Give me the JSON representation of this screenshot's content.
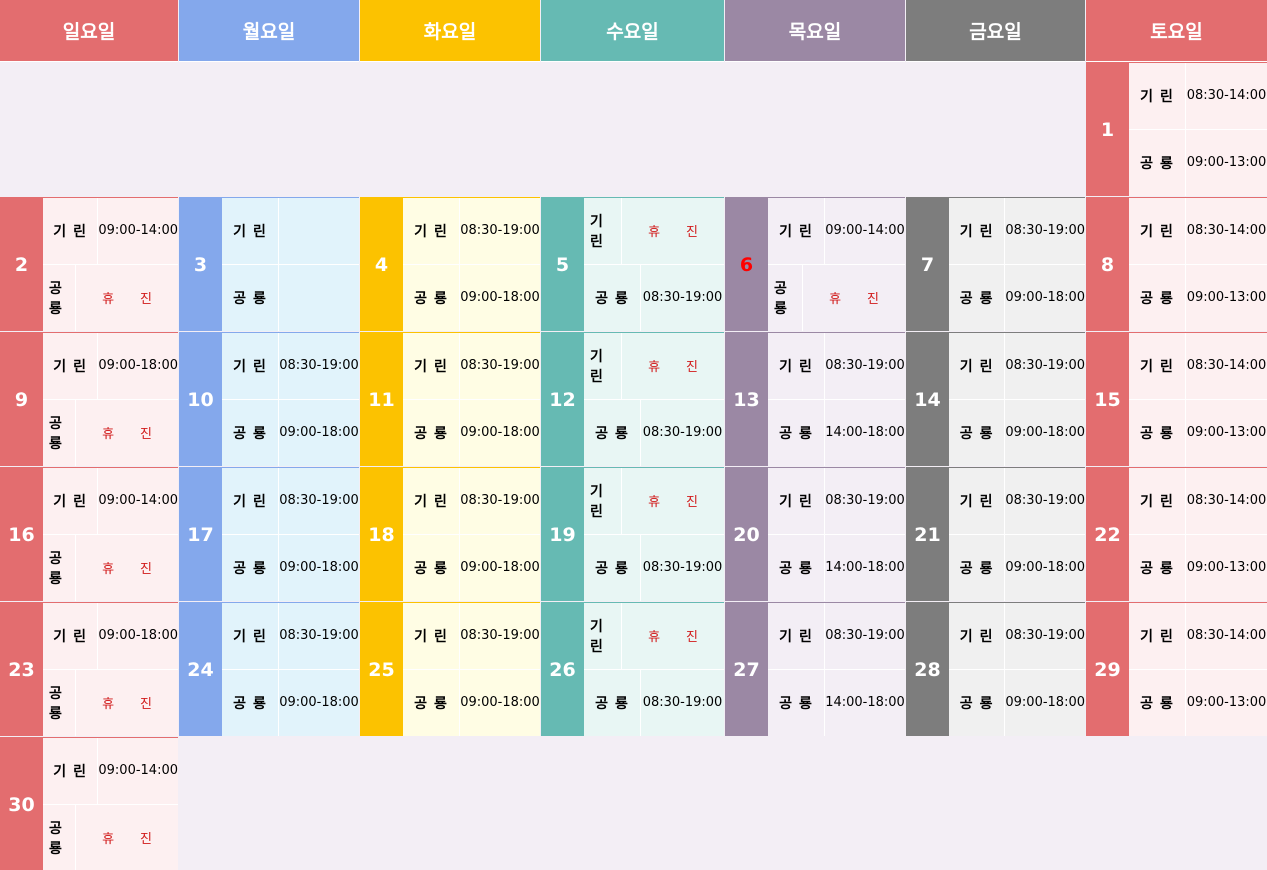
{
  "colors": {
    "background": "#f3eef5",
    "sun": {
      "header": "#e36d6f",
      "num": "#e36d6f",
      "body": "#fdf0f1"
    },
    "mon": {
      "header": "#84a8ec",
      "num": "#84a8ec",
      "body": "#e1f3fb"
    },
    "tue": {
      "header": "#fcc200",
      "num": "#fcc200",
      "body": "#fffde4"
    },
    "wed": {
      "header": "#66bab3",
      "num": "#66bab3",
      "body": "#e8f6f4"
    },
    "thu": {
      "header": "#9b88a4",
      "num": "#9b88a4",
      "body": "#f3eef5"
    },
    "fri": {
      "header": "#7d7d7d",
      "num": "#7d7d7d",
      "body": "#f0f0f0"
    },
    "sat": {
      "header": "#e36d6f",
      "num": "#e36d6f",
      "body": "#fdf0f1"
    },
    "holiday_text": "#ff0000",
    "closed_text": "#d11a1a"
  },
  "headers": [
    "일요일",
    "월요일",
    "화요일",
    "수요일",
    "목요일",
    "금요일",
    "토요일"
  ],
  "doctors": [
    "기린",
    "공룡"
  ],
  "closed_label": "휴진",
  "days": [
    {
      "day": "1",
      "col": 6,
      "week": 0,
      "times": [
        "08:30-14:00",
        "09:00-13:00"
      ]
    },
    {
      "day": "2",
      "col": 0,
      "week": 1,
      "times": [
        "09:00-14:00",
        "휴진"
      ]
    },
    {
      "day": "3",
      "col": 1,
      "week": 1,
      "times": [
        "",
        ""
      ]
    },
    {
      "day": "4",
      "col": 2,
      "week": 1,
      "times": [
        "08:30-19:00",
        "09:00-18:00"
      ]
    },
    {
      "day": "5",
      "col": 3,
      "week": 1,
      "times": [
        "휴진",
        "08:30-19:00"
      ]
    },
    {
      "day": "6",
      "col": 4,
      "week": 1,
      "holiday": true,
      "times": [
        "09:00-14:00",
        "휴진"
      ]
    },
    {
      "day": "7",
      "col": 5,
      "week": 1,
      "times": [
        "08:30-19:00",
        "09:00-18:00"
      ]
    },
    {
      "day": "8",
      "col": 6,
      "week": 1,
      "times": [
        "08:30-14:00",
        "09:00-13:00"
      ]
    },
    {
      "day": "9",
      "col": 0,
      "week": 2,
      "times": [
        "09:00-18:00",
        "휴진"
      ]
    },
    {
      "day": "10",
      "col": 1,
      "week": 2,
      "times": [
        "08:30-19:00",
        "09:00-18:00"
      ]
    },
    {
      "day": "11",
      "col": 2,
      "week": 2,
      "times": [
        "08:30-19:00",
        "09:00-18:00"
      ]
    },
    {
      "day": "12",
      "col": 3,
      "week": 2,
      "times": [
        "휴진",
        "08:30-19:00"
      ]
    },
    {
      "day": "13",
      "col": 4,
      "week": 2,
      "times": [
        "08:30-19:00",
        "14:00-18:00"
      ]
    },
    {
      "day": "14",
      "col": 5,
      "week": 2,
      "times": [
        "08:30-19:00",
        "09:00-18:00"
      ]
    },
    {
      "day": "15",
      "col": 6,
      "week": 2,
      "times": [
        "08:30-14:00",
        "09:00-13:00"
      ]
    },
    {
      "day": "16",
      "col": 0,
      "week": 3,
      "times": [
        "09:00-14:00",
        "휴진"
      ]
    },
    {
      "day": "17",
      "col": 1,
      "week": 3,
      "times": [
        "08:30-19:00",
        "09:00-18:00"
      ]
    },
    {
      "day": "18",
      "col": 2,
      "week": 3,
      "times": [
        "08:30-19:00",
        "09:00-18:00"
      ]
    },
    {
      "day": "19",
      "col": 3,
      "week": 3,
      "times": [
        "휴진",
        "08:30-19:00"
      ]
    },
    {
      "day": "20",
      "col": 4,
      "week": 3,
      "times": [
        "08:30-19:00",
        "14:00-18:00"
      ]
    },
    {
      "day": "21",
      "col": 5,
      "week": 3,
      "times": [
        "08:30-19:00",
        "09:00-18:00"
      ]
    },
    {
      "day": "22",
      "col": 6,
      "week": 3,
      "times": [
        "08:30-14:00",
        "09:00-13:00"
      ]
    },
    {
      "day": "23",
      "col": 0,
      "week": 4,
      "times": [
        "09:00-18:00",
        "휴진"
      ]
    },
    {
      "day": "24",
      "col": 1,
      "week": 4,
      "times": [
        "08:30-19:00",
        "09:00-18:00"
      ]
    },
    {
      "day": "25",
      "col": 2,
      "week": 4,
      "times": [
        "08:30-19:00",
        "09:00-18:00"
      ]
    },
    {
      "day": "26",
      "col": 3,
      "week": 4,
      "times": [
        "휴진",
        "08:30-19:00"
      ]
    },
    {
      "day": "27",
      "col": 4,
      "week": 4,
      "times": [
        "08:30-19:00",
        "14:00-18:00"
      ]
    },
    {
      "day": "28",
      "col": 5,
      "week": 4,
      "times": [
        "08:30-19:00",
        "09:00-18:00"
      ]
    },
    {
      "day": "29",
      "col": 6,
      "week": 4,
      "times": [
        "08:30-14:00",
        "09:00-13:00"
      ]
    },
    {
      "day": "30",
      "col": 0,
      "week": 5,
      "times": [
        "09:00-14:00",
        "휴진"
      ]
    }
  ]
}
